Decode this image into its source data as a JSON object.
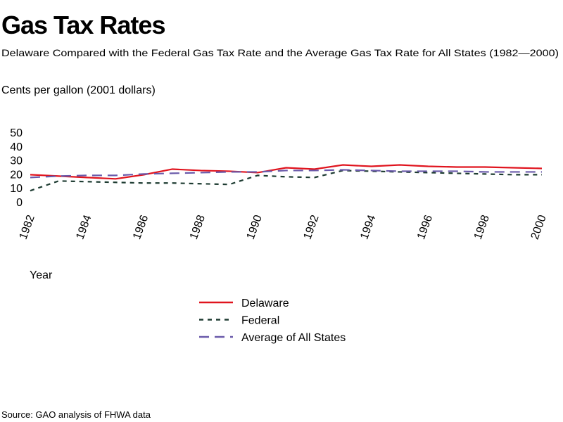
{
  "chart_data": {
    "type": "line",
    "title": "Gas Tax Rates",
    "subtitle": "Delaware Compared with the Federal Gas Tax Rate and the Average Gas Tax Rate for All States (1982—2000)",
    "y_label": "Cents per gallon (2001 dollars)",
    "x_label": "Year",
    "source": "Source: GAO analysis of FHWA data",
    "x": [
      1982,
      1983,
      1984,
      1985,
      1986,
      1987,
      1988,
      1989,
      1990,
      1991,
      1992,
      1993,
      1994,
      1995,
      1996,
      1997,
      1998,
      1999,
      2000
    ],
    "series": [
      {
        "name": "Delaware",
        "color": "#e0141e",
        "line_style": "solid",
        "values": [
          19.5,
          18.5,
          17.5,
          16.5,
          19.5,
          23.5,
          22.5,
          22,
          21,
          24.5,
          23.5,
          26.5,
          25.5,
          26.5,
          25.5,
          25,
          25,
          24.5,
          24
        ]
      },
      {
        "name": "Federal",
        "color": "#1e3c32",
        "line_style": "dotted",
        "values": [
          8,
          15,
          14.5,
          14,
          13.5,
          13.5,
          13,
          12.5,
          19,
          18,
          17.5,
          22.5,
          22,
          21.5,
          21,
          20.5,
          20,
          19.5,
          19.5
        ]
      },
      {
        "name": "Average of All States",
        "color": "#6a5aaa",
        "line_style": "dashed",
        "values": [
          17.5,
          18.5,
          19,
          19,
          20,
          20.5,
          21,
          21.5,
          21.5,
          22.5,
          22.5,
          23,
          22.5,
          22,
          22,
          22,
          21.5,
          21.5,
          21.5
        ]
      }
    ],
    "xlim": [
      1982,
      2000
    ],
    "xticks": [
      1982,
      1984,
      1986,
      1988,
      1990,
      1992,
      1994,
      1996,
      1998,
      2000
    ],
    "ylim": [
      0,
      50
    ],
    "yticks": [
      0,
      10,
      20,
      30,
      40,
      50
    ],
    "grid": false
  }
}
